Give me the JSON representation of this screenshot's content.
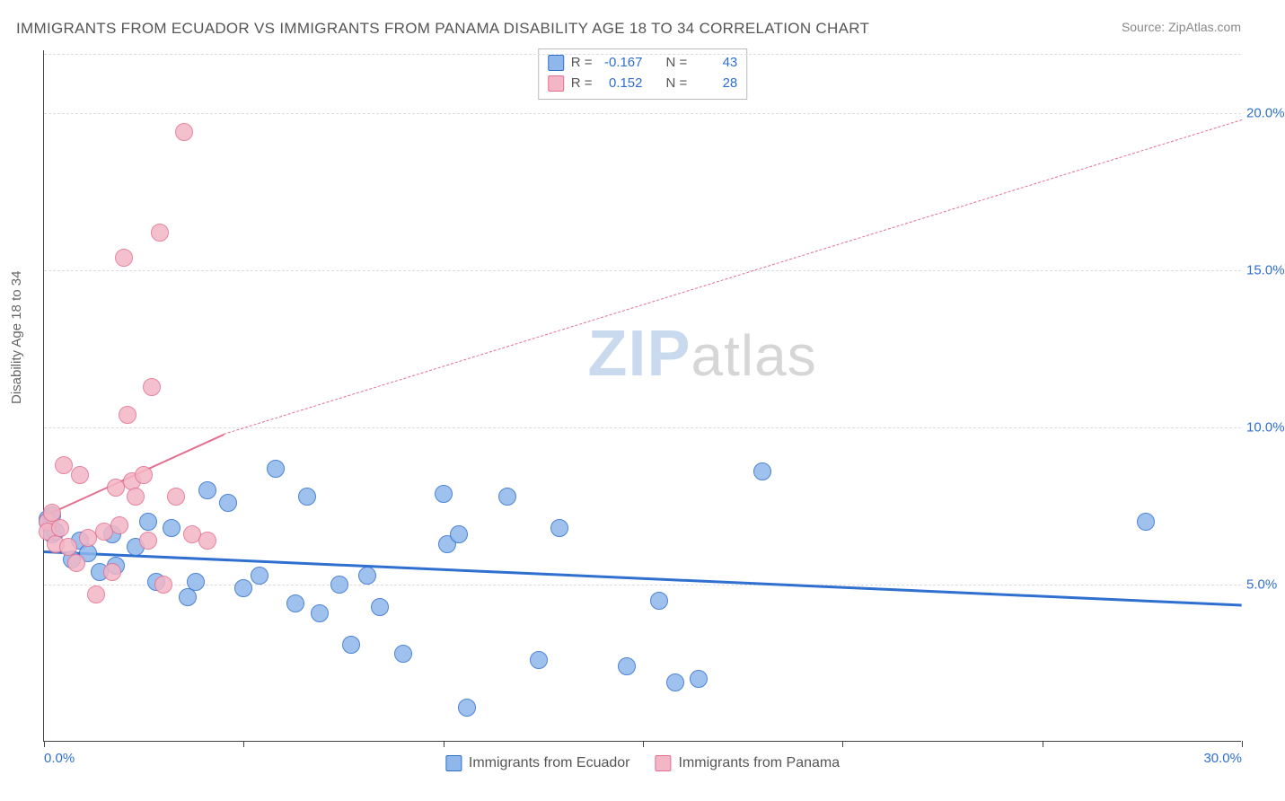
{
  "title": "IMMIGRANTS FROM ECUADOR VS IMMIGRANTS FROM PANAMA DISABILITY AGE 18 TO 34 CORRELATION CHART",
  "source_label": "Source: ",
  "source_value": "ZipAtlas.com",
  "ylabel": "Disability Age 18 to 34",
  "watermark": {
    "part1": "ZIP",
    "part2": "atlas"
  },
  "chart": {
    "type": "scatter",
    "background_color": "#ffffff",
    "grid_color": "#dddddd",
    "axis_color": "#444444",
    "xlim": [
      0,
      30
    ],
    "ylim": [
      0,
      22
    ],
    "xticks": [
      0,
      5,
      10,
      15,
      20,
      25,
      30
    ],
    "xtick_labels": {
      "0": "0.0%",
      "30": "30.0%"
    },
    "xtick_label_color": "#2f6fd0",
    "yticks": [
      5,
      10,
      15,
      20
    ],
    "ytick_labels": [
      "5.0%",
      "10.0%",
      "15.0%",
      "20.0%"
    ],
    "ytick_label_color": "#2f6fd0",
    "marker_radius": 10,
    "marker_border_width": 1.5,
    "marker_fill_opacity": 0.28,
    "series": [
      {
        "name": "Immigrants from Ecuador",
        "key": "ecuador",
        "color": "#2f6fd0",
        "fill": "#8fb7ea",
        "R": "-0.167",
        "N": "43",
        "trend": {
          "x1": 0,
          "y1": 6.1,
          "x2": 30,
          "y2": 4.4,
          "width": 3,
          "dash": "solid"
        },
        "points": [
          [
            0.1,
            7.1
          ],
          [
            0.1,
            7.0
          ],
          [
            0.2,
            6.6
          ],
          [
            0.2,
            7.2
          ],
          [
            0.3,
            6.7
          ],
          [
            0.7,
            5.8
          ],
          [
            0.9,
            6.4
          ],
          [
            1.1,
            6.0
          ],
          [
            1.4,
            5.4
          ],
          [
            1.7,
            6.6
          ],
          [
            1.8,
            5.6
          ],
          [
            2.3,
            6.2
          ],
          [
            2.6,
            7.0
          ],
          [
            2.8,
            5.1
          ],
          [
            3.2,
            6.8
          ],
          [
            3.6,
            4.6
          ],
          [
            3.8,
            5.1
          ],
          [
            4.1,
            8.0
          ],
          [
            4.6,
            7.6
          ],
          [
            5.0,
            4.9
          ],
          [
            5.4,
            5.3
          ],
          [
            5.8,
            8.7
          ],
          [
            6.3,
            4.4
          ],
          [
            6.6,
            7.8
          ],
          [
            6.9,
            4.1
          ],
          [
            7.4,
            5.0
          ],
          [
            7.7,
            3.1
          ],
          [
            8.1,
            5.3
          ],
          [
            8.4,
            4.3
          ],
          [
            9.0,
            2.8
          ],
          [
            10.0,
            7.9
          ],
          [
            10.1,
            6.3
          ],
          [
            10.4,
            6.6
          ],
          [
            10.6,
            1.1
          ],
          [
            11.6,
            7.8
          ],
          [
            12.4,
            2.6
          ],
          [
            12.9,
            6.8
          ],
          [
            14.6,
            2.4
          ],
          [
            15.4,
            4.5
          ],
          [
            15.8,
            1.9
          ],
          [
            16.4,
            2.0
          ],
          [
            18.0,
            8.6
          ],
          [
            27.6,
            7.0
          ]
        ]
      },
      {
        "name": "Immigrants from Panama",
        "key": "panama",
        "color": "#e36f90",
        "fill": "#f3b6c6",
        "R": "0.152",
        "N": "28",
        "trend_solid": {
          "x1": 0,
          "y1": 7.2,
          "x2": 4.5,
          "y2": 9.8,
          "width": 2,
          "dash": "solid"
        },
        "trend_dash": {
          "x1": 4.5,
          "y1": 9.8,
          "x2": 30,
          "y2": 19.8,
          "width": 1,
          "dash": "dashed"
        },
        "points": [
          [
            0.1,
            7.0
          ],
          [
            0.1,
            6.7
          ],
          [
            0.2,
            7.3
          ],
          [
            0.3,
            6.3
          ],
          [
            0.4,
            6.8
          ],
          [
            0.5,
            8.8
          ],
          [
            0.6,
            6.2
          ],
          [
            0.8,
            5.7
          ],
          [
            0.9,
            8.5
          ],
          [
            1.1,
            6.5
          ],
          [
            1.3,
            4.7
          ],
          [
            1.5,
            6.7
          ],
          [
            1.7,
            5.4
          ],
          [
            1.8,
            8.1
          ],
          [
            1.9,
            6.9
          ],
          [
            2.0,
            15.4
          ],
          [
            2.1,
            10.4
          ],
          [
            2.2,
            8.3
          ],
          [
            2.3,
            7.8
          ],
          [
            2.5,
            8.5
          ],
          [
            2.6,
            6.4
          ],
          [
            2.7,
            11.3
          ],
          [
            2.9,
            16.2
          ],
          [
            3.0,
            5.0
          ],
          [
            3.3,
            7.8
          ],
          [
            3.5,
            19.4
          ],
          [
            3.7,
            6.6
          ],
          [
            4.1,
            6.4
          ]
        ]
      }
    ],
    "legend_bottom": [
      {
        "label": "Immigrants from Ecuador",
        "fill": "#8fb7ea",
        "border": "#2f6fd0"
      },
      {
        "label": "Immigrants from Panama",
        "fill": "#f3b6c6",
        "border": "#e36f90"
      }
    ],
    "stats_box": {
      "border_color": "#bbbbbb",
      "value_color": "#2f6fd0",
      "rows": [
        {
          "swatch_fill": "#8fb7ea",
          "swatch_border": "#2f6fd0",
          "r_label": "R =",
          "r_value": "-0.167",
          "n_label": "N =",
          "n_value": "43"
        },
        {
          "swatch_fill": "#f3b6c6",
          "swatch_border": "#e36f90",
          "r_label": "R =",
          "r_value": "0.152",
          "n_label": "N =",
          "n_value": "28"
        }
      ]
    }
  }
}
